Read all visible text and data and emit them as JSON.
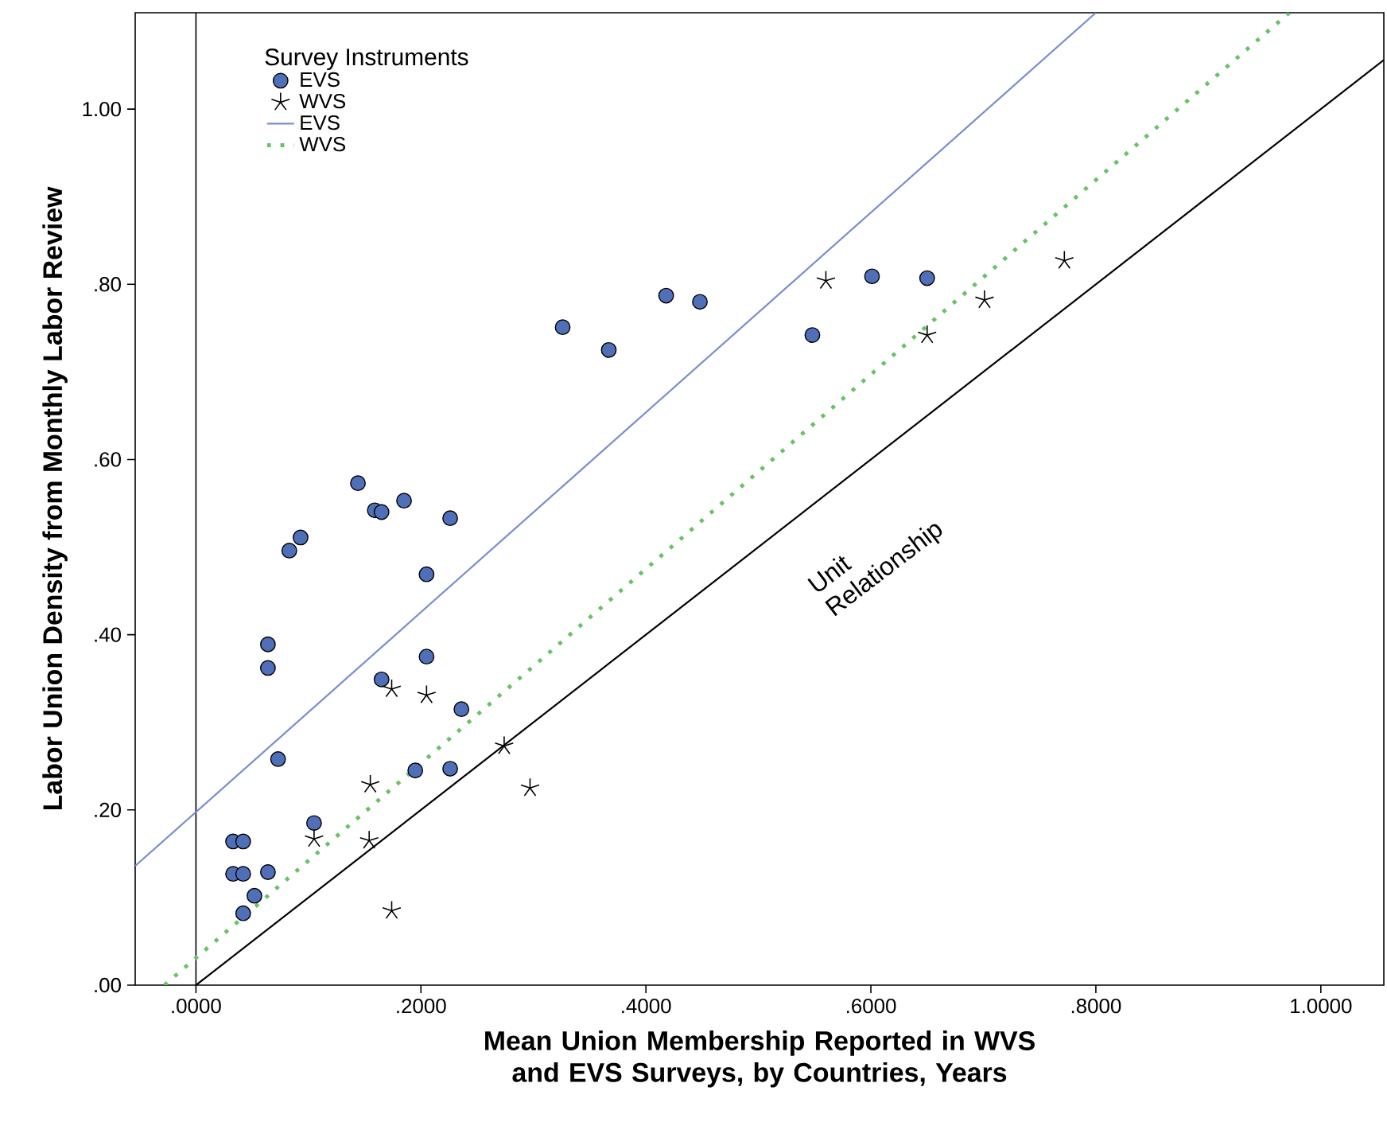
{
  "chart_data": {
    "type": "scatter",
    "xlabel": "Mean Union Membership Reported in WVS and EVS Surveys, by Countries, Years",
    "ylabel": "Labor Union Density from Monthly Labor Review",
    "legend_title": "Survey Instruments",
    "legend": "top left",
    "xlim": [
      -0.054,
      1.056
    ],
    "ylim": [
      0,
      1.11
    ],
    "xticks": [
      {
        "value": 0,
        "label": ".0000"
      },
      {
        "value": 0.2,
        "label": ".2000"
      },
      {
        "value": 0.4,
        "label": ".4000"
      },
      {
        "value": 0.6,
        "label": ".6000"
      },
      {
        "value": 0.8,
        "label": ".8000"
      },
      {
        "value": 1.0,
        "label": "1.0000"
      }
    ],
    "yticks": [
      {
        "value": 0,
        "label": ".00"
      },
      {
        "value": 0.2,
        "label": ".20"
      },
      {
        "value": 0.4,
        "label": ".40"
      },
      {
        "value": 0.6,
        "label": ".60"
      },
      {
        "value": 0.8,
        "label": ".80"
      },
      {
        "value": 1.0,
        "label": "1.00"
      }
    ],
    "series": [
      {
        "name": "EVS",
        "marker": "circle",
        "color": "#4f6fb8",
        "x": [
          0.033,
          0.042,
          0.033,
          0.042,
          0.064,
          0.052,
          0.042,
          0.073,
          0.064,
          0.064,
          0.083,
          0.093,
          0.144,
          0.159,
          0.165,
          0.185,
          0.226,
          0.205,
          0.205,
          0.165,
          0.236,
          0.105,
          0.195,
          0.226,
          0.326,
          0.367,
          0.418,
          0.448,
          0.548,
          0.601,
          0.65
        ],
        "values": [
          0.164,
          0.164,
          0.127,
          0.127,
          0.129,
          0.102,
          0.082,
          0.258,
          0.389,
          0.362,
          0.496,
          0.511,
          0.573,
          0.542,
          0.54,
          0.553,
          0.533,
          0.469,
          0.375,
          0.349,
          0.315,
          0.185,
          0.245,
          0.247,
          0.751,
          0.725,
          0.787,
          0.78,
          0.742,
          0.809,
          0.807
        ]
      },
      {
        "name": "WVS",
        "marker": "cross",
        "color": "#000000",
        "x": [
          0.174,
          0.205,
          0.155,
          0.274,
          0.297,
          0.105,
          0.154,
          0.174,
          0.56,
          0.65,
          0.701,
          0.772
        ],
        "values": [
          0.338,
          0.331,
          0.229,
          0.273,
          0.225,
          0.167,
          0.165,
          0.085,
          0.804,
          0.742,
          0.782,
          0.827
        ]
      },
      {
        "name": "EVS",
        "type": "line",
        "line_style": "solid",
        "color": "#7b8ed0",
        "x": [
          -0.054,
          0.8
        ],
        "values": [
          0.136,
          1.11
        ]
      },
      {
        "name": "WVS",
        "type": "line",
        "line_style": "dotted",
        "color": "#66c466",
        "x": [
          -0.028,
          0.972
        ],
        "values": [
          0,
          1.11
        ]
      },
      {
        "type": "line",
        "line_style": "solid",
        "color": "#000000",
        "x": [
          0,
          1.056
        ],
        "values": [
          0,
          1.056
        ]
      }
    ],
    "ref_lines": [
      {
        "axis": "x",
        "value": 0,
        "color": "#000000"
      }
    ],
    "annotations": [
      "Unit Relationship"
    ]
  }
}
